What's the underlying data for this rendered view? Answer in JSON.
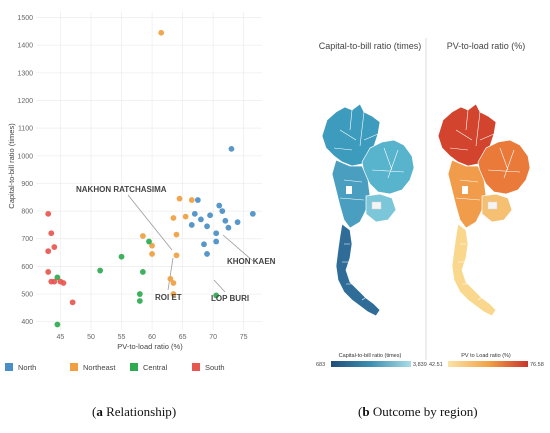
{
  "chart_data": [
    {
      "type": "scatter",
      "title": "",
      "xlabel": "PV-to-load ratio (%)",
      "ylabel": "Capital-to-bill ratio (times)",
      "xlim": [
        41,
        78
      ],
      "ylim": [
        370,
        1520
      ],
      "xticks": [
        45,
        50,
        55,
        60,
        65,
        70,
        75
      ],
      "yticks": [
        400,
        500,
        600,
        700,
        800,
        900,
        1000,
        1100,
        1200,
        1300,
        1400,
        1500
      ],
      "grid": true,
      "legend_position": "bottom",
      "series": [
        {
          "name": "North",
          "color": "#4a8ec6",
          "points": [
            [
              67.5,
              840
            ],
            [
              69.5,
              785
            ],
            [
              71,
              820
            ],
            [
              71.5,
              800
            ],
            [
              72,
              765
            ],
            [
              74,
              760
            ],
            [
              76.5,
              790
            ],
            [
              73,
              1025
            ],
            [
              67,
              790
            ],
            [
              68,
              770
            ],
            [
              66.5,
              750
            ],
            [
              69,
              745
            ],
            [
              70.5,
              720
            ],
            [
              70.5,
              690
            ],
            [
              68.5,
              680
            ],
            [
              69,
              645
            ],
            [
              72.5,
              740
            ]
          ]
        },
        {
          "name": "Northeast",
          "color": "#f0a040",
          "points": [
            [
              61.5,
              1445
            ],
            [
              64.5,
              845
            ],
            [
              66.5,
              840
            ],
            [
              65.5,
              780
            ],
            [
              63.5,
              775
            ],
            [
              64,
              715
            ],
            [
              58.5,
              710
            ],
            [
              60,
              675
            ],
            [
              60,
              645
            ],
            [
              64,
              640
            ],
            [
              63,
              555
            ],
            [
              63.5,
              540
            ],
            [
              63.5,
              500
            ]
          ]
        },
        {
          "name": "Central",
          "color": "#2eaa50",
          "points": [
            [
              59.5,
              690
            ],
            [
              55,
              635
            ],
            [
              51.5,
              585
            ],
            [
              58.5,
              580
            ],
            [
              44.5,
              560
            ],
            [
              58,
              500
            ],
            [
              58,
              475
            ],
            [
              70.5,
              495
            ],
            [
              44.5,
              390
            ]
          ]
        },
        {
          "name": "South",
          "color": "#e8574f",
          "points": [
            [
              43,
              790
            ],
            [
              43.5,
              720
            ],
            [
              44,
              670
            ],
            [
              43,
              655
            ],
            [
              43,
              580
            ],
            [
              44,
              545
            ],
            [
              43.5,
              545
            ],
            [
              45,
              545
            ],
            [
              45.5,
              540
            ],
            [
              47,
              470
            ]
          ]
        }
      ],
      "annotations": [
        "NAKHON RATCHASIMA",
        "KHON KAEN",
        "ROI ET",
        "LOP BURI"
      ]
    },
    {
      "type": "map",
      "panels": [
        {
          "title": "Capital-to-bill ratio (times)",
          "colorbar_label": "Capital-to-bill ratio (times)",
          "min_label": "683",
          "max_label": "3,839",
          "colors": [
            "#1f4e79",
            "#3d8fb0",
            "#a9dce8"
          ]
        },
        {
          "title": "PV-to-load ratio (%)",
          "colorbar_label": "PV to Load ratio (%)",
          "min_label": "42.51",
          "max_label": "76.58",
          "colors": [
            "#fbe3a8",
            "#f2a447",
            "#c9342a"
          ]
        }
      ]
    }
  ],
  "captions": {
    "a_letter": "a",
    "a_text": " Relationship",
    "b_letter": "b",
    "b_text": " Outcome by region"
  }
}
